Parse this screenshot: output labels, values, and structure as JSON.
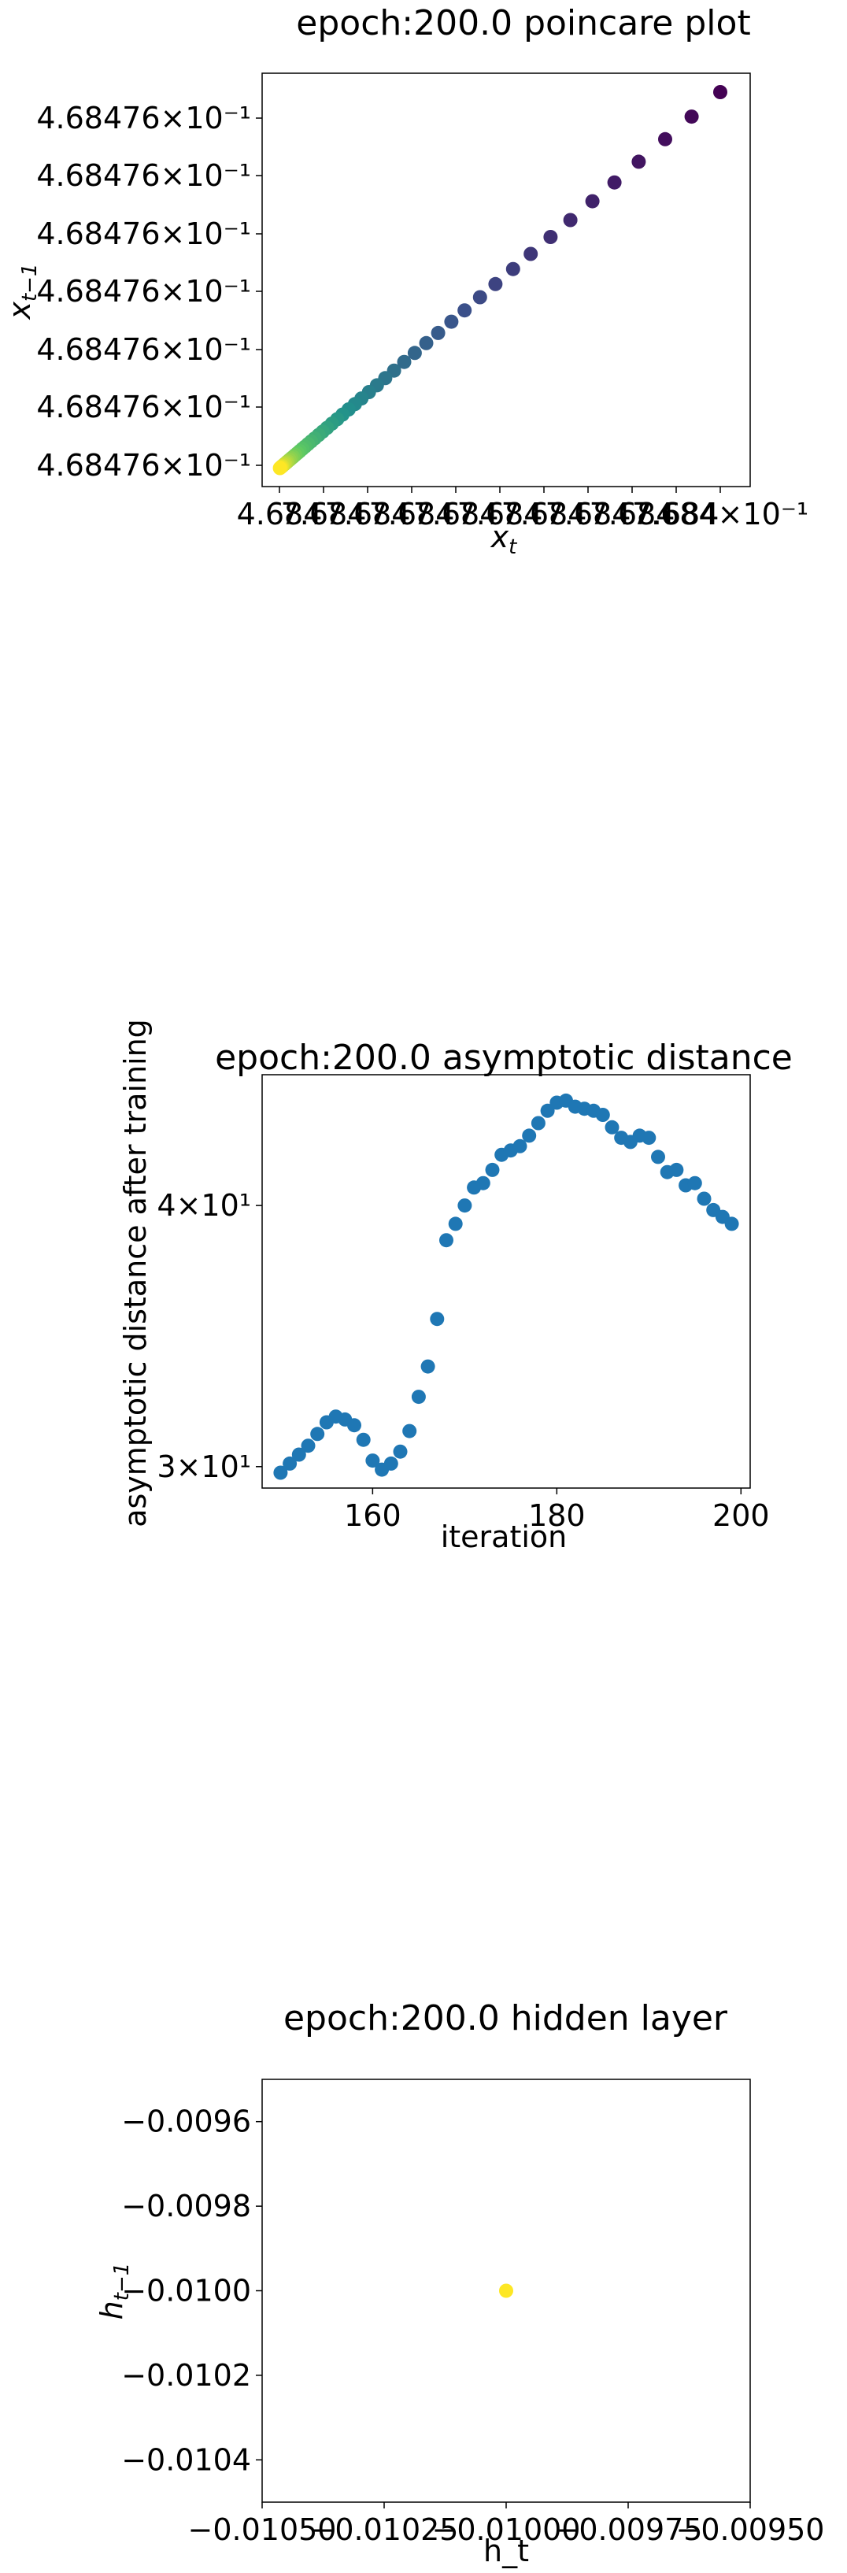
{
  "chart_data": [
    {
      "type": "scatter",
      "title": "epoch:200.0 poincare plot",
      "xlabel": "x_t",
      "ylabel": "x_{t-1}",
      "colormap": "viridis",
      "y_tick_labels": [
        "4.68476×10⁻¹",
        "4.68476×10⁻¹",
        "4.68476×10⁻¹",
        "4.68476×10⁻¹",
        "4.68476×10⁻¹",
        "4.68476×10⁻¹",
        "4.68476×10⁻¹"
      ],
      "x_tick_labels": [
        "4.68476×10⁻¹",
        "4.68476×10⁻¹",
        "4.68476×10⁻¹",
        "4.68476×10⁻¹",
        "4.68476×10⁻¹",
        "4.68476×10⁻¹",
        "4.68476×10⁻¹",
        "4.68476×10⁻¹",
        "4.68476×10⁻¹",
        "4.68476×10⁻¹",
        "4.68476×10⁻¹"
      ],
      "x_tick_labels_shown": [
        "4.684",
        "7.684",
        "7.684",
        "7.684",
        "7.684",
        "7.684",
        "7.684",
        "7.684",
        "7.684",
        "7.684",
        "7.684×10⁻¹"
      ],
      "points": [
        [
          1.0,
          1.0
        ],
        [
          0.935,
          0.935
        ],
        [
          0.875,
          0.875
        ],
        [
          0.815,
          0.815
        ],
        [
          0.76,
          0.76
        ],
        [
          0.71,
          0.71
        ],
        [
          0.66,
          0.66
        ],
        [
          0.615,
          0.615
        ],
        [
          0.57,
          0.57
        ],
        [
          0.53,
          0.53
        ],
        [
          0.49,
          0.49
        ],
        [
          0.455,
          0.455
        ],
        [
          0.42,
          0.42
        ],
        [
          0.39,
          0.39
        ],
        [
          0.36,
          0.36
        ],
        [
          0.333,
          0.333
        ],
        [
          0.307,
          0.307
        ],
        [
          0.283,
          0.283
        ],
        [
          0.26,
          0.26
        ],
        [
          0.24,
          0.24
        ],
        [
          0.221,
          0.221
        ],
        [
          0.203,
          0.203
        ],
        [
          0.186,
          0.186
        ],
        [
          0.171,
          0.171
        ],
        [
          0.157,
          0.157
        ],
        [
          0.143,
          0.143
        ],
        [
          0.131,
          0.131
        ],
        [
          0.119,
          0.119
        ],
        [
          0.108,
          0.108
        ],
        [
          0.098,
          0.098
        ],
        [
          0.089,
          0.089
        ],
        [
          0.08,
          0.08
        ],
        [
          0.072,
          0.072
        ],
        [
          0.065,
          0.065
        ],
        [
          0.058,
          0.058
        ],
        [
          0.052,
          0.052
        ],
        [
          0.046,
          0.046
        ],
        [
          0.041,
          0.041
        ],
        [
          0.036,
          0.036
        ],
        [
          0.031,
          0.031
        ],
        [
          0.027,
          0.027
        ],
        [
          0.023,
          0.023
        ],
        [
          0.019,
          0.019
        ],
        [
          0.016,
          0.016
        ],
        [
          0.013,
          0.013
        ],
        [
          0.01,
          0.01
        ],
        [
          0.007,
          0.007
        ],
        [
          0.005,
          0.005
        ],
        [
          0.003,
          0.003
        ],
        [
          0.001,
          0.001
        ]
      ]
    },
    {
      "type": "scatter",
      "title": "epoch:200.0 asymptotic distance",
      "xlabel": "iteration",
      "ylabel": "asymptotic distance after training",
      "yscale": "log",
      "color": "#1f77b4",
      "xlim": [
        148,
        201
      ],
      "ylim": [
        29.3,
        46.2
      ],
      "x_ticks": [
        160,
        180,
        200
      ],
      "x_tick_labels": [
        "160",
        "180",
        "200"
      ],
      "y_ticks": [
        30,
        40
      ],
      "y_tick_labels": [
        "3×10¹",
        "4×10¹"
      ],
      "x": [
        150,
        151,
        152,
        153,
        154,
        155,
        156,
        157,
        158,
        159,
        160,
        161,
        162,
        163,
        164,
        165,
        166,
        167,
        168,
        169,
        170,
        171,
        172,
        173,
        174,
        175,
        176,
        177,
        178,
        179,
        180,
        181,
        182,
        183,
        184,
        185,
        186,
        187,
        188,
        189,
        190,
        191,
        192,
        193,
        194,
        195,
        196,
        197,
        198,
        199
      ],
      "y": [
        29.8,
        30.1,
        30.4,
        30.7,
        31.1,
        31.5,
        31.7,
        31.6,
        31.4,
        30.9,
        30.2,
        29.9,
        30.1,
        30.5,
        31.2,
        32.4,
        33.5,
        35.3,
        38.5,
        39.2,
        40.0,
        40.8,
        41.0,
        41.6,
        42.3,
        42.5,
        42.7,
        43.2,
        43.8,
        44.4,
        44.8,
        44.9,
        44.6,
        44.5,
        44.4,
        44.2,
        43.6,
        43.1,
        42.9,
        43.2,
        43.1,
        42.2,
        41.5,
        41.6,
        40.9,
        41.0,
        40.3,
        39.8,
        39.5,
        39.2
      ]
    },
    {
      "type": "scatter",
      "title": "epoch:200.0 hidden layer",
      "xlabel": "h_t",
      "ylabel": "h_{t-1}",
      "color": "#fde725",
      "xlim": [
        -0.0105,
        -0.0095
      ],
      "ylim": [
        -0.0105,
        -0.0095
      ],
      "x_ticks": [
        -0.0105,
        -0.01025,
        -0.01,
        -0.00975,
        -0.0095
      ],
      "x_tick_labels": [
        "−0.01050",
        "−0.01025",
        "−0.01000",
        "−0.00975",
        "−0.00950"
      ],
      "y_ticks": [
        -0.0096,
        -0.0098,
        -0.01,
        -0.0102,
        -0.0104
      ],
      "y_tick_labels": [
        "−0.0096",
        "−0.0098",
        "−0.0100",
        "−0.0102",
        "−0.0104"
      ],
      "x": [
        -0.01
      ],
      "y": [
        -0.01
      ]
    }
  ]
}
